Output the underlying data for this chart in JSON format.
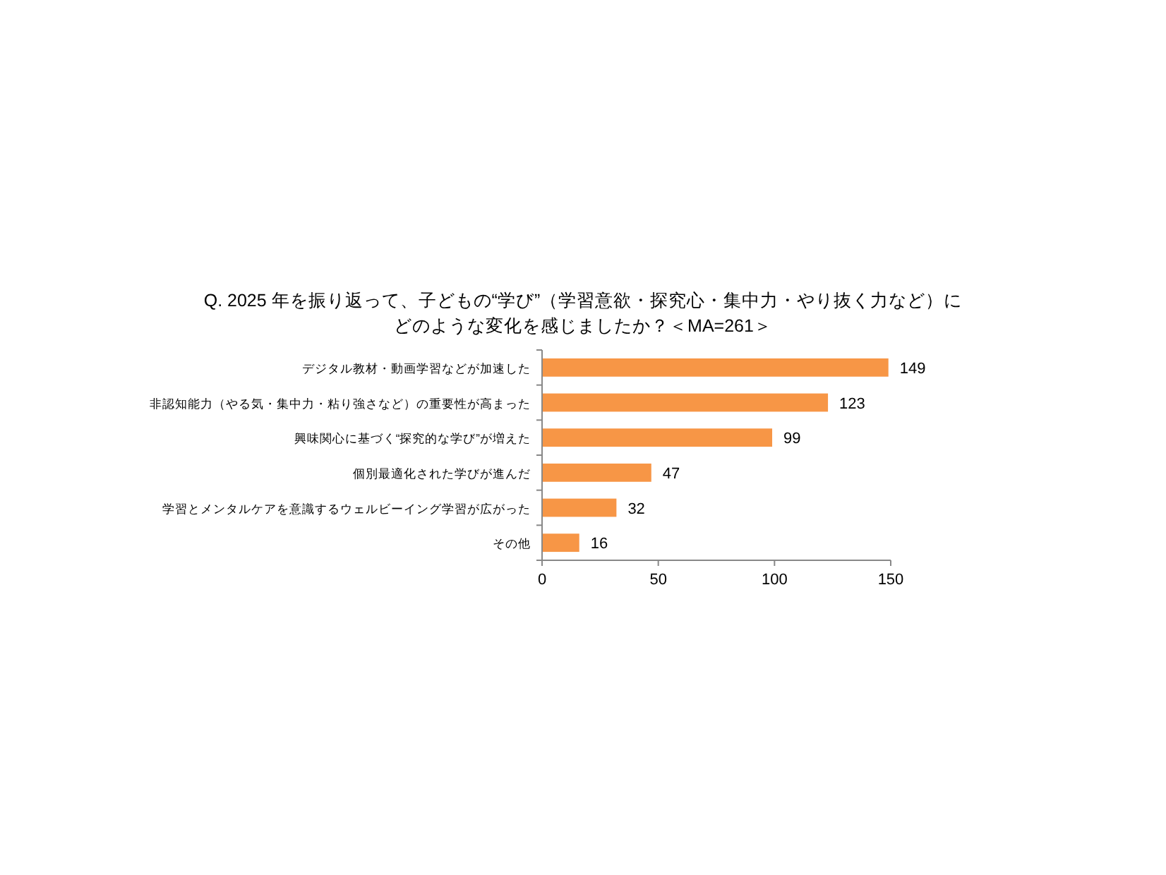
{
  "chart_data": {
    "type": "bar",
    "orientation": "horizontal",
    "title": "Q. 2025 年を振り返って、子どもの“学び”（学習意欲・探究心・集中力・やり抜く力など）に",
    "subtitle": "どのような変化を感じましたか？＜MA=261＞",
    "categories": [
      "デジタル教材・動画学習などが加速した",
      "非認知能力（やる気・集中力・粘り強さなど）の重要性が高まった",
      "興味関心に基づく“探究的な学び”が増えた",
      "個別最適化された学びが進んだ",
      "学習とメンタルケアを意識するウェルビーイング学習が広がった",
      "その他"
    ],
    "values": [
      149,
      123,
      99,
      47,
      32,
      16
    ],
    "color": "#f79646",
    "xlim": [
      0,
      150
    ],
    "xticks": [
      0,
      50,
      100,
      150
    ],
    "data_labels": true,
    "grid": false
  }
}
